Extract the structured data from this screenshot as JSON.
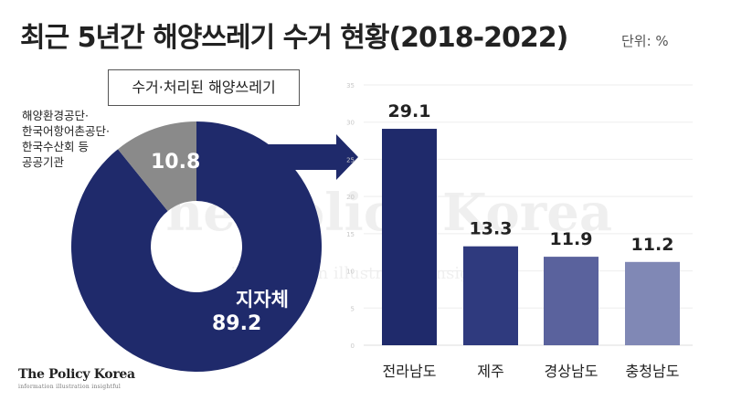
{
  "header": {
    "title": "최근 5년간 해양쓰레기 수거 현황(2018-2022)",
    "unit": "단위: %"
  },
  "donut": {
    "legend": "수거·처리된 해양쓰레기",
    "note_lines": [
      "해양환경공단·",
      "한국어항어촌공단·",
      "한국수산회 등",
      "공공기관"
    ]
  },
  "brand": {
    "name": "The Policy Korea",
    "tagline": "information illustration insightful",
    "watermark": "The Policy Korea"
  },
  "colors": {
    "navy": "#1f2a6b",
    "gray": "#8a8a8a",
    "bar1": "#1f2a6b",
    "bar2": "#2f3a7e",
    "bar3": "#5a629d",
    "bar4": "#8088b5",
    "arrow": "#1f2a6b"
  },
  "chart_data": [
    {
      "type": "pie",
      "categories": [
        "지자체",
        "해양환경공단·한국어항어촌공단·한국수산회 등 공공기관"
      ],
      "values": [
        89.2,
        10.8
      ],
      "value_labels": [
        "89.2",
        "10.8"
      ],
      "slice_labels": [
        "지자체",
        ""
      ]
    },
    {
      "type": "bar",
      "categories": [
        "전라남도",
        "제주",
        "경상남도",
        "충청남도"
      ],
      "values": [
        29.1,
        13.3,
        11.9,
        11.2
      ],
      "value_labels": [
        "29.1",
        "13.3",
        "11.9",
        "11.2"
      ],
      "ylim": [
        0,
        35
      ],
      "yticks": [
        0,
        5,
        10,
        15,
        20,
        25,
        30,
        35
      ],
      "ytick_labels": [
        "0",
        "5",
        "10",
        "15",
        "20",
        "25",
        "30",
        "35"
      ],
      "grid": false
    }
  ]
}
